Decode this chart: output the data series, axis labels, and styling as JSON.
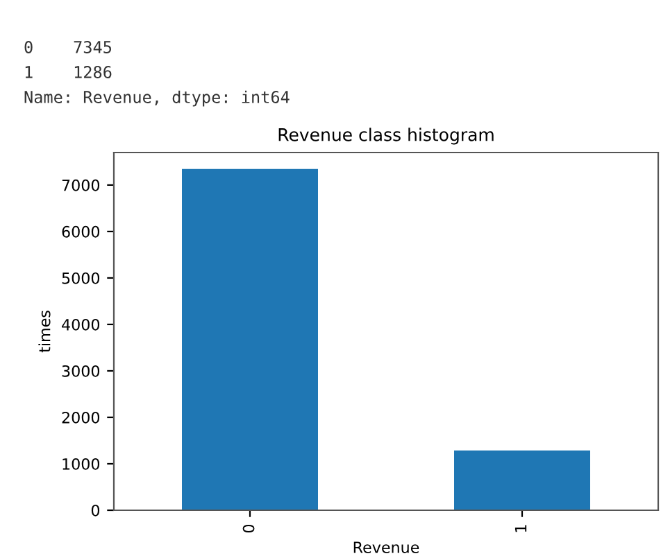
{
  "chart_data": {
    "type": "bar",
    "title": "Revenue class histogram",
    "xlabel": "Revenue",
    "ylabel": "times",
    "categories": [
      "0",
      "1"
    ],
    "values": [
      7345,
      1286
    ],
    "color": "#1f77b4",
    "ylim": [
      0,
      7700
    ],
    "yticks": [
      0,
      1000,
      2000,
      3000,
      4000,
      5000,
      6000,
      7000
    ],
    "annotations": [
      "0    7345",
      "1    1286",
      "Name: Revenue, dtype: int64"
    ],
    "grid": false
  }
}
